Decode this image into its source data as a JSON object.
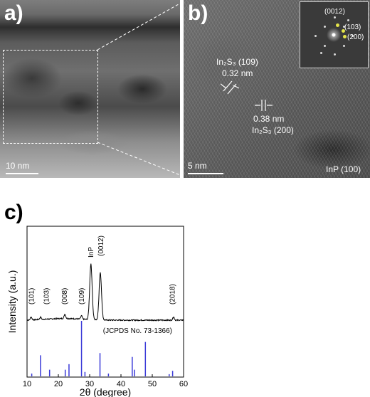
{
  "panel_a": {
    "letter": "a)",
    "scale": "10 nm"
  },
  "panel_b": {
    "letter": "b)",
    "scale": "5 nm",
    "ann1_title": "In₂S₃ (109)",
    "ann1_value": "0.32 nm",
    "ann2_value": "0.38 nm",
    "ann2_title": "In₂S₃ (200)",
    "substrate": "InP (100)",
    "fft_labels": [
      "(0012)",
      "(103)",
      "(200)"
    ]
  },
  "panel_c": {
    "letter": "c)"
  },
  "chart_data": {
    "type": "line",
    "xlabel": "2θ (degree)",
    "ylabel": "Intensity (a.u.)",
    "xlim": [
      10,
      60
    ],
    "x_ticks": [
      10,
      20,
      30,
      40,
      50,
      60
    ],
    "reference_label": "(JCPDS No. 73-1366)",
    "peak_labels": [
      {
        "label": "(101)",
        "x": 11.5
      },
      {
        "label": "(103)",
        "x": 16.2
      },
      {
        "label": "(008)",
        "x": 22.1
      },
      {
        "label": "(109)",
        "x": 27.5
      },
      {
        "label": "InP",
        "x": 30.4
      },
      {
        "label": "(0012)",
        "x": 33.6
      },
      {
        "label": "(2018)",
        "x": 56.5
      }
    ],
    "xrd_peaks": [
      {
        "x": 11.3,
        "h": 0.05
      },
      {
        "x": 14.3,
        "h": 0.04
      },
      {
        "x": 22.1,
        "h": 0.08
      },
      {
        "x": 27.4,
        "h": 0.06
      },
      {
        "x": 30.4,
        "h": 1.0
      },
      {
        "x": 33.4,
        "h": 0.85
      },
      {
        "x": 56.8,
        "h": 0.06
      }
    ],
    "reference_lines": [
      {
        "x": 11.5,
        "h": 0.05
      },
      {
        "x": 14.3,
        "h": 0.38
      },
      {
        "x": 17.2,
        "h": 0.12
      },
      {
        "x": 22.2,
        "h": 0.12
      },
      {
        "x": 23.4,
        "h": 0.22
      },
      {
        "x": 27.4,
        "h": 1.0
      },
      {
        "x": 28.5,
        "h": 0.08
      },
      {
        "x": 33.3,
        "h": 0.42
      },
      {
        "x": 36.0,
        "h": 0.05
      },
      {
        "x": 43.6,
        "h": 0.35
      },
      {
        "x": 44.3,
        "h": 0.12
      },
      {
        "x": 47.8,
        "h": 0.62
      },
      {
        "x": 55.4,
        "h": 0.04
      },
      {
        "x": 56.5,
        "h": 0.1
      }
    ]
  }
}
